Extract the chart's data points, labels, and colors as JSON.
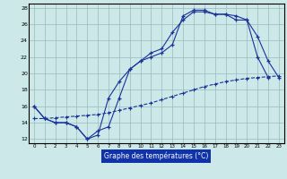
{
  "bg_color": "#cce8e8",
  "line_color": "#1a3399",
  "xlabel_text": "Graphe des températures (°C)",
  "xlabel_bg": "#1133aa",
  "xlabel_fg": "#ffffff",
  "xlim": [
    -0.5,
    23.5
  ],
  "ylim": [
    11.5,
    28.5
  ],
  "yticks": [
    12,
    14,
    16,
    18,
    20,
    22,
    24,
    26,
    28
  ],
  "xtick_labels": [
    "0",
    "1",
    "2",
    "3",
    "4",
    "5",
    "6",
    "7",
    "8",
    "9",
    "10",
    "11",
    "12",
    "13",
    "14",
    "15",
    "16",
    "17",
    "18",
    "19",
    "20",
    "21",
    "22",
    "23"
  ],
  "line1_x": [
    0,
    1,
    2,
    3,
    4,
    5,
    6,
    7,
    8,
    9,
    10,
    11,
    12,
    13,
    14,
    15,
    16,
    17,
    18,
    19,
    20,
    21,
    22
  ],
  "line1_y": [
    16,
    14.5,
    14,
    14,
    13.5,
    12,
    13,
    13.5,
    17.0,
    20.5,
    21.5,
    22.5,
    23.0,
    25.0,
    26.5,
    27.5,
    27.5,
    27.2,
    27.2,
    27.0,
    26.5,
    22.0,
    19.5
  ],
  "line2_x": [
    0,
    1,
    2,
    3,
    4,
    5,
    6,
    7,
    8,
    9,
    10,
    11,
    12,
    13,
    14,
    15,
    16,
    17,
    18,
    19,
    20,
    21,
    22,
    23
  ],
  "line2_y": [
    16,
    14.5,
    14,
    14,
    13.5,
    12,
    12.5,
    17.0,
    19.0,
    20.5,
    21.5,
    22.0,
    22.5,
    23.5,
    27.0,
    27.7,
    27.7,
    27.2,
    27.2,
    26.5,
    26.5,
    24.5,
    21.5,
    19.5
  ],
  "line3_x": [
    0,
    1,
    2,
    3,
    4,
    5,
    6,
    7,
    8,
    9,
    10,
    11,
    12,
    13,
    14,
    15,
    16,
    17,
    18,
    19,
    20,
    21,
    22,
    23
  ],
  "line3_y": [
    14.5,
    14.5,
    14.6,
    14.7,
    14.8,
    14.9,
    15.0,
    15.2,
    15.5,
    15.8,
    16.1,
    16.4,
    16.8,
    17.2,
    17.6,
    18.0,
    18.4,
    18.7,
    19.0,
    19.2,
    19.4,
    19.5,
    19.6,
    19.7
  ]
}
